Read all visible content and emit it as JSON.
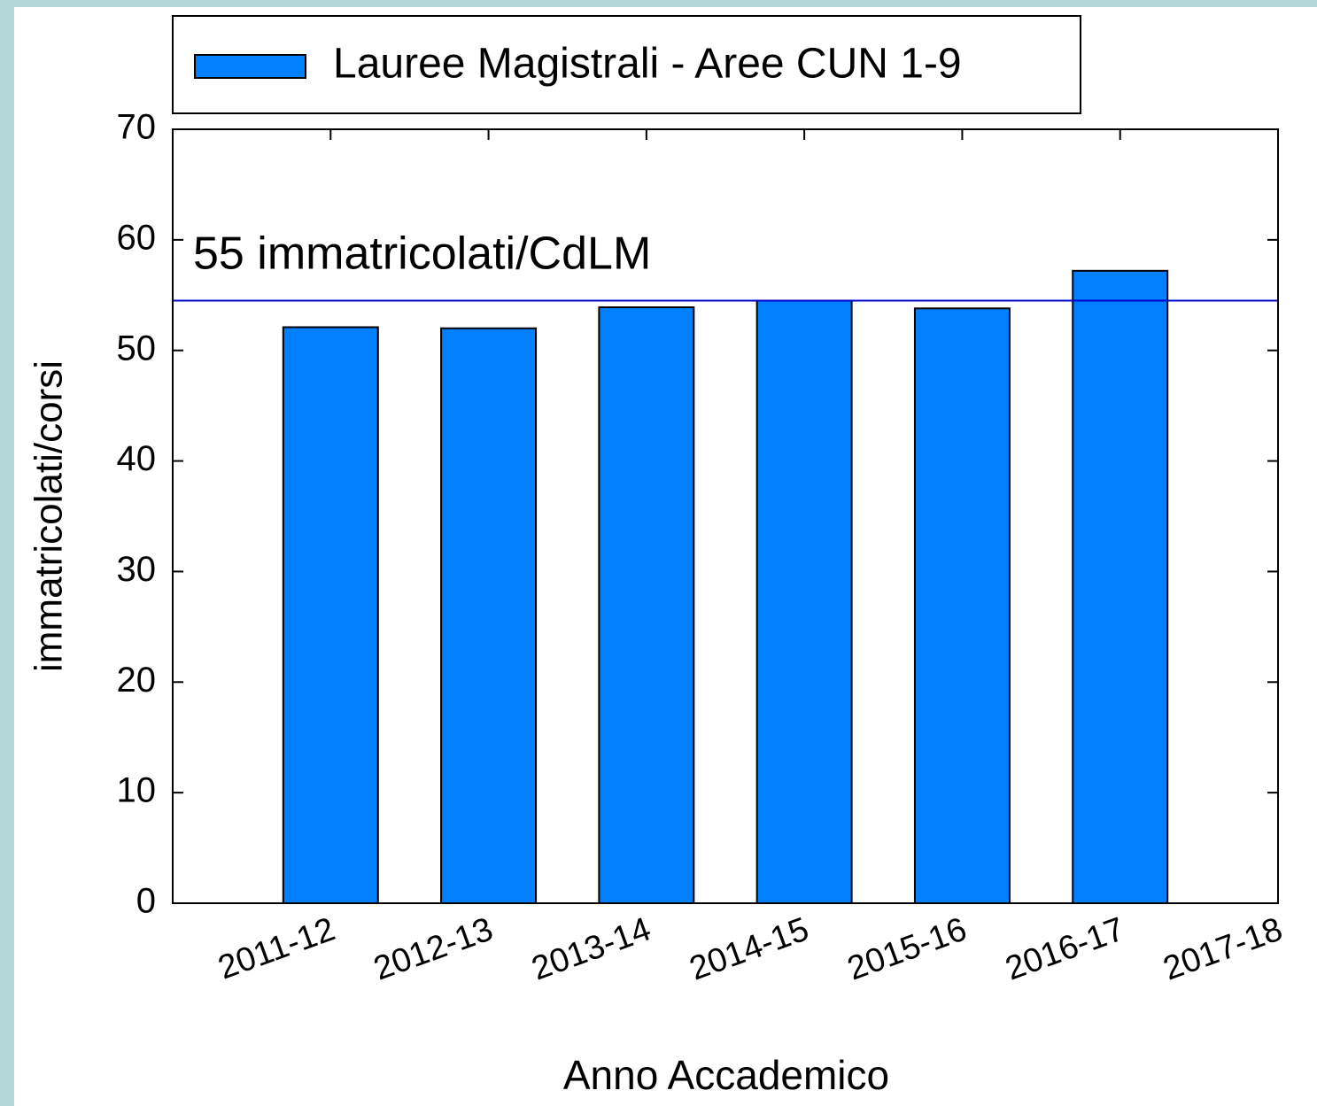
{
  "chart_data": {
    "type": "bar",
    "categories": [
      "2011-12",
      "2012-13",
      "2013-14",
      "2014-15",
      "2015-16",
      "2016-17",
      "2017-18"
    ],
    "series": [
      {
        "name": "Lauree Magistrali - Aree CUN 1-9",
        "color": "#0080ff",
        "values": [
          52.1,
          52.0,
          53.9,
          54.5,
          53.8,
          57.2,
          null
        ]
      }
    ],
    "ylim": [
      0,
      70
    ],
    "yticks": [
      0,
      10,
      20,
      30,
      40,
      50,
      60,
      70
    ],
    "xlabel": "Anno Accademico",
    "ylabel": "immatricolati/corsi",
    "reference_line": {
      "value": 54.5,
      "label": "55 immatricolati/CdLM",
      "color": "#0000cc"
    },
    "legend": "top-left"
  }
}
